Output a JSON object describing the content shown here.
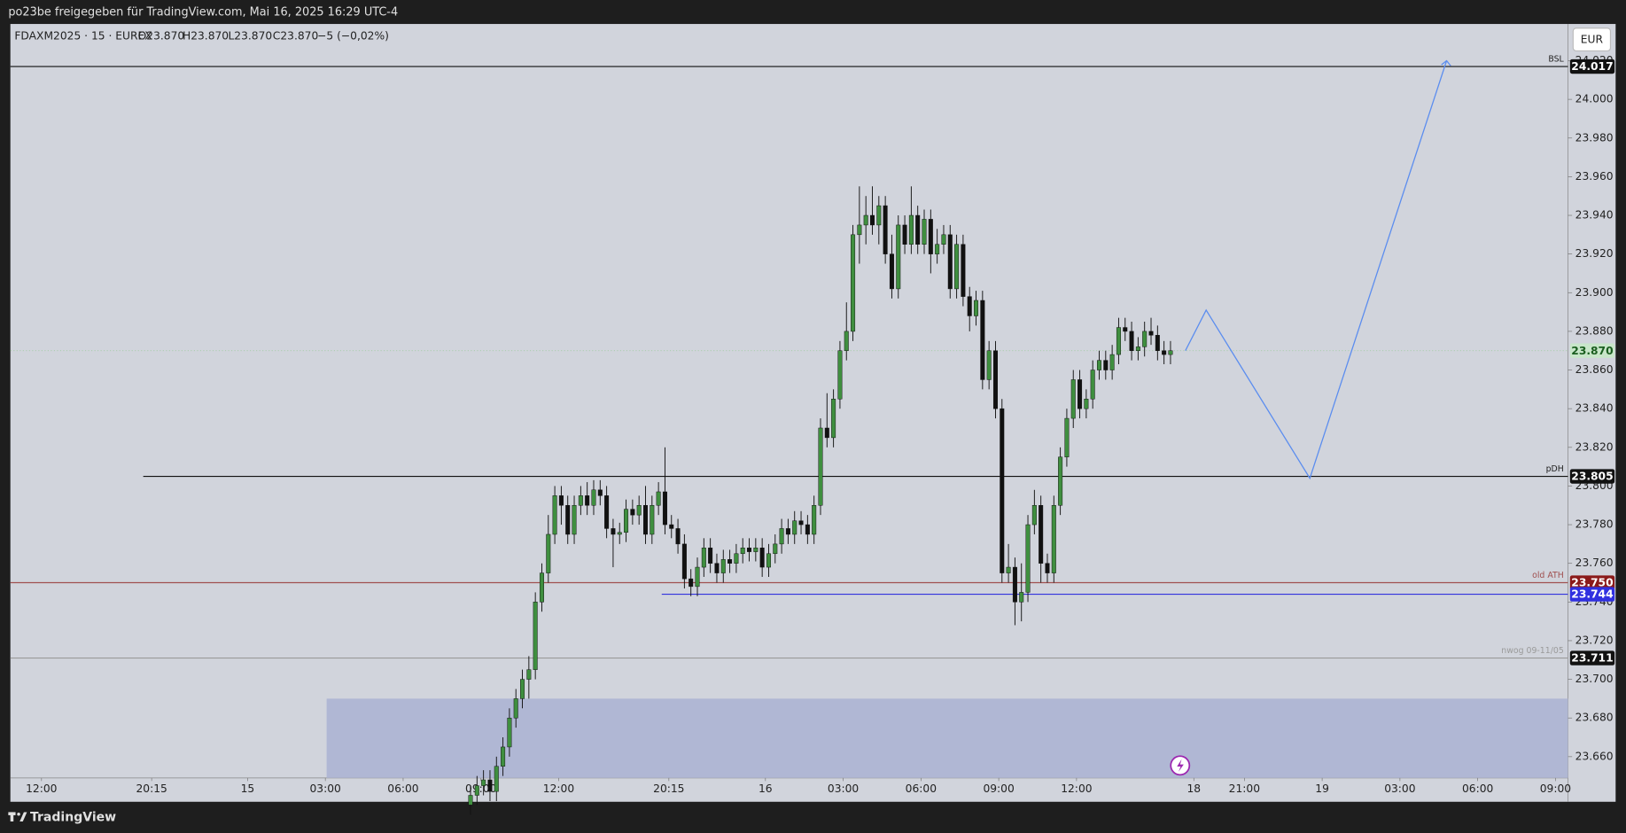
{
  "header": {
    "title": "po23be freigegeben für TradingView.com, Mai 16, 2025 16:29 UTC-4"
  },
  "footer": {
    "brand": "TradingView"
  },
  "chart_data": {
    "type": "candlestick",
    "legend": {
      "symbol": "FDAXM2025 · 15 · EUREX",
      "open": "O23.870",
      "high": "H23.870",
      "low": "L23.870",
      "close": "C23.870",
      "change": "−5 (−0,02%)"
    },
    "currency": "EUR",
    "colors": {
      "up": "#3f8f3f",
      "down": "#111111",
      "wick": "#111111",
      "background": "#d1d4dc"
    },
    "xlim": [
      0,
      240.32
    ],
    "xticks": [
      {
        "value": 4.8,
        "label": "12:00"
      },
      {
        "value": 21.8,
        "label": "20:15"
      },
      {
        "value": 36.6,
        "label": "15"
      },
      {
        "value": 48.6,
        "label": "03:00"
      },
      {
        "value": 60.6,
        "label": "06:00"
      },
      {
        "value": 72.6,
        "label": "09:00"
      },
      {
        "value": 84.6,
        "label": "12:00"
      },
      {
        "value": 101.6,
        "label": "20:15"
      },
      {
        "value": 116.5,
        "label": "16"
      },
      {
        "value": 128.5,
        "label": "03:00"
      },
      {
        "value": 140.5,
        "label": "06:00"
      },
      {
        "value": 152.5,
        "label": "09:00"
      },
      {
        "value": 164.5,
        "label": "12:00"
      },
      {
        "value": 182.6,
        "label": "18"
      },
      {
        "value": 190.4,
        "label": "21:00"
      },
      {
        "value": 202.4,
        "label": "19"
      },
      {
        "value": 214.4,
        "label": "03:00"
      },
      {
        "value": 226.4,
        "label": "06:00"
      },
      {
        "value": 238.4,
        "label": "09:00"
      }
    ],
    "ylim": [
      23649,
      24039
    ],
    "yticks": [
      {
        "value": 23660,
        "label": "23.660"
      },
      {
        "value": 23680,
        "label": "23.680"
      },
      {
        "value": 23700,
        "label": "23.700"
      },
      {
        "value": 23720,
        "label": "23.720"
      },
      {
        "value": 23740,
        "label": "23.740"
      },
      {
        "value": 23760,
        "label": "23.760"
      },
      {
        "value": 23780,
        "label": "23.780"
      },
      {
        "value": 23800,
        "label": "23.800"
      },
      {
        "value": 23820,
        "label": "23.820"
      },
      {
        "value": 23840,
        "label": "23.840"
      },
      {
        "value": 23860,
        "label": "23.860"
      },
      {
        "value": 23880,
        "label": "23.880"
      },
      {
        "value": 23900,
        "label": "23.900"
      },
      {
        "value": 23920,
        "label": "23.920"
      },
      {
        "value": 23940,
        "label": "23.940"
      },
      {
        "value": 23960,
        "label": "23.960"
      },
      {
        "value": 23980,
        "label": "23.980"
      },
      {
        "value": 24000,
        "label": "24.000"
      },
      {
        "value": 24020,
        "label": "24.020"
      }
    ],
    "x": [
      71,
      72,
      73,
      74,
      75,
      76,
      77,
      78,
      79,
      80,
      81,
      82,
      83,
      84,
      85,
      86,
      87,
      88,
      89,
      90,
      91,
      92,
      93,
      94,
      95,
      96,
      97,
      98,
      99,
      100,
      101,
      102,
      103,
      104,
      105,
      106,
      107,
      108,
      109,
      110,
      111,
      112,
      113,
      114,
      115,
      116,
      117,
      118,
      119,
      120,
      121,
      122,
      123,
      124,
      125,
      126,
      127,
      128,
      129,
      130,
      131,
      132,
      133,
      134,
      135,
      136,
      137,
      138,
      139,
      140,
      141,
      142,
      143,
      144,
      145,
      146,
      147,
      148,
      149,
      150,
      151,
      152,
      153,
      154,
      155,
      156,
      157,
      158,
      159,
      160,
      161,
      162,
      163,
      164,
      165,
      166,
      167,
      168,
      169,
      170,
      171,
      172,
      173,
      174,
      175,
      176,
      177,
      178,
      179
    ],
    "open": [
      23635,
      23640,
      23645,
      23648,
      23642,
      23655,
      23665,
      23680,
      23690,
      23700,
      23705,
      23740,
      23755,
      23775,
      23795,
      23790,
      23775,
      23790,
      23795,
      23790,
      23798,
      23795,
      23778,
      23775,
      23776,
      23788,
      23785,
      23790,
      23775,
      23790,
      23797,
      23780,
      23778,
      23770,
      23752,
      23748,
      23758,
      23768,
      23760,
      23755,
      23762,
      23760,
      23765,
      23768,
      23766,
      23768,
      23758,
      23765,
      23770,
      23778,
      23775,
      23782,
      23780,
      23775,
      23790,
      23830,
      23825,
      23845,
      23870,
      23880,
      23930,
      23935,
      23940,
      23935,
      23945,
      23920,
      23902,
      23935,
      23925,
      23940,
      23925,
      23938,
      23920,
      23925,
      23930,
      23902,
      23925,
      23898,
      23888,
      23896,
      23855,
      23870,
      23840,
      23755,
      23758,
      23740,
      23745,
      23780,
      23790,
      23760,
      23755,
      23790,
      23815,
      23835,
      23855,
      23840,
      23845,
      23860,
      23865,
      23860,
      23868,
      23882,
      23880,
      23870,
      23872,
      23880,
      23878,
      23870,
      23868
    ],
    "high": [
      23645,
      23650,
      23653,
      23653,
      23660,
      23670,
      23685,
      23695,
      23705,
      23712,
      23745,
      23760,
      23785,
      23800,
      23800,
      23795,
      23795,
      23800,
      23802,
      23803,
      23803,
      23800,
      23783,
      23781,
      23793,
      23793,
      23795,
      23800,
      23795,
      23802,
      23820,
      23785,
      23783,
      23775,
      23757,
      23763,
      23773,
      23773,
      23765,
      23767,
      23767,
      23770,
      23773,
      23773,
      23773,
      23773,
      23770,
      23775,
      23783,
      23783,
      23787,
      23787,
      23785,
      23795,
      23835,
      23848,
      23850,
      23875,
      23895,
      23935,
      23955,
      23950,
      23955,
      23950,
      23950,
      23930,
      23940,
      23940,
      23955,
      23945,
      23943,
      23943,
      23933,
      23935,
      23935,
      23930,
      23930,
      23903,
      23901,
      23901,
      23875,
      23875,
      23845,
      23770,
      23763,
      23760,
      23785,
      23798,
      23795,
      23765,
      23795,
      23820,
      23840,
      23860,
      23860,
      23850,
      23865,
      23870,
      23870,
      23873,
      23887,
      23887,
      23885,
      23877,
      23885,
      23887,
      23883,
      23875,
      23875
    ],
    "low": [
      23630,
      23635,
      23640,
      23637,
      23637,
      23650,
      23660,
      23675,
      23685,
      23690,
      23700,
      23735,
      23750,
      23770,
      23780,
      23770,
      23770,
      23785,
      23785,
      23785,
      23790,
      23773,
      23758,
      23770,
      23771,
      23780,
      23780,
      23770,
      23770,
      23785,
      23775,
      23773,
      23765,
      23747,
      23743,
      23743,
      23753,
      23755,
      23750,
      23750,
      23755,
      23755,
      23760,
      23761,
      23761,
      23753,
      23753,
      23760,
      23765,
      23770,
      23770,
      23775,
      23770,
      23770,
      23785,
      23820,
      23820,
      23840,
      23865,
      23875,
      23915,
      23925,
      23930,
      23925,
      23915,
      23897,
      23897,
      23920,
      23920,
      23920,
      23920,
      23910,
      23915,
      23920,
      23897,
      23897,
      23893,
      23880,
      23883,
      23850,
      23850,
      23835,
      23750,
      23750,
      23728,
      23730,
      23740,
      23775,
      23750,
      23750,
      23750,
      23785,
      23810,
      23830,
      23835,
      23835,
      23840,
      23855,
      23855,
      23855,
      23863,
      23875,
      23865,
      23865,
      23867,
      23873,
      23865,
      23863,
      23863
    ],
    "close": [
      23640,
      23645,
      23648,
      23642,
      23655,
      23665,
      23680,
      23690,
      23700,
      23705,
      23740,
      23755,
      23775,
      23795,
      23790,
      23775,
      23790,
      23795,
      23790,
      23798,
      23795,
      23778,
      23775,
      23776,
      23788,
      23785,
      23790,
      23775,
      23790,
      23797,
      23780,
      23778,
      23770,
      23752,
      23748,
      23758,
      23768,
      23760,
      23755,
      23762,
      23760,
      23765,
      23768,
      23766,
      23768,
      23758,
      23765,
      23770,
      23778,
      23775,
      23782,
      23780,
      23775,
      23790,
      23830,
      23825,
      23845,
      23870,
      23880,
      23930,
      23935,
      23940,
      23935,
      23945,
      23920,
      23902,
      23935,
      23925,
      23940,
      23925,
      23938,
      23920,
      23925,
      23930,
      23902,
      23925,
      23898,
      23888,
      23896,
      23855,
      23870,
      23840,
      23755,
      23758,
      23740,
      23745,
      23780,
      23790,
      23760,
      23755,
      23790,
      23815,
      23835,
      23855,
      23840,
      23845,
      23860,
      23865,
      23860,
      23868,
      23882,
      23880,
      23870,
      23872,
      23880,
      23878,
      23870,
      23868,
      23870
    ],
    "levels": [
      {
        "name": "BSL",
        "value": 24017,
        "label": "24.017",
        "color": "#111111",
        "label_bg": "#111111",
        "x_start": 0
      },
      {
        "name": "pDH",
        "value": 23805,
        "label": "23.805",
        "color": "#111111",
        "label_bg": "#111111",
        "x_start": 20.5
      },
      {
        "name": "old ATH",
        "value": 23750,
        "label": "23.750",
        "color": "#a05050",
        "label_bg": "#8b1a1a",
        "x_start": 0
      },
      {
        "value": 23744,
        "label": "23.744",
        "color": "#3333dd",
        "label_bg": "#3030e0",
        "x_start": 100.5
      },
      {
        "name": "nwog 09-11/05",
        "value": 23711,
        "label": "23.711",
        "color": "#9a9a9a",
        "label_bg": "#111111",
        "x_start": 0
      }
    ],
    "last_price": {
      "value": 23870,
      "label": "23.870",
      "color": "#c8e6c9"
    },
    "projection": {
      "x": [
        181.3,
        184.5,
        200.5,
        221.6
      ],
      "values": [
        23870,
        23891,
        23804,
        24020
      ],
      "color": "#5b8def"
    },
    "zone": {
      "x_start": 48.8,
      "top": 23690,
      "color": "#b0b7d4"
    }
  }
}
